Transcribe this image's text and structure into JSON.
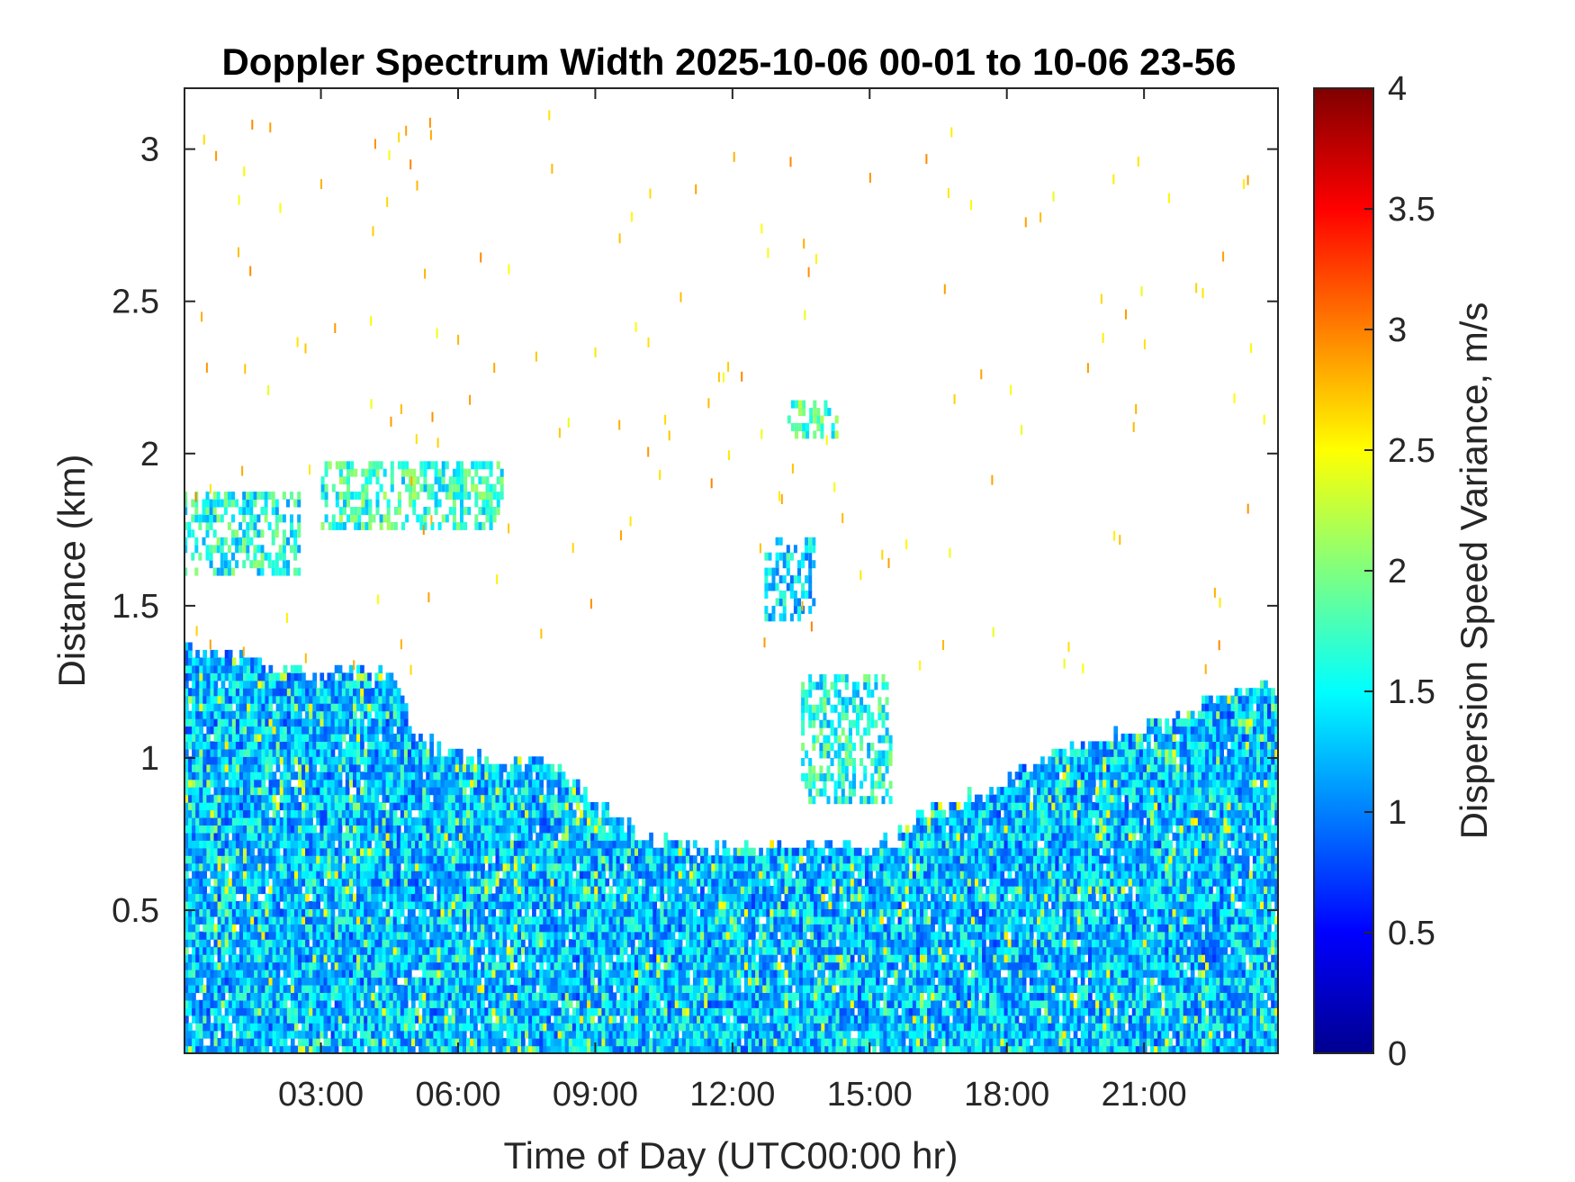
{
  "chart_data": {
    "type": "heatmap",
    "title": "Doppler Spectrum Width 2025-10-06 00-01 to 10-06 23-56",
    "xlabel": "Time of Day (UTC00:00 hr)",
    "ylabel": "Distance (km)",
    "colorbar_label": "Dispersion Speed Variance, m/s",
    "colormap": "jet",
    "x_unit": "hours UTC",
    "xlim": [
      0.0167,
      23.93
    ],
    "ylim": [
      0.03,
      3.2
    ],
    "clim": [
      0,
      4
    ],
    "x_ticks": [
      3,
      6,
      9,
      12,
      15,
      18,
      21
    ],
    "x_tick_labels": [
      "03:00",
      "06:00",
      "09:00",
      "12:00",
      "15:00",
      "18:00",
      "21:00"
    ],
    "y_ticks": [
      0.5,
      1,
      1.5,
      2,
      2.5,
      3
    ],
    "y_tick_labels": [
      "0.5",
      "1",
      "1.5",
      "2",
      "2.5",
      "3"
    ],
    "colorbar_ticks": [
      0,
      0.5,
      1,
      1.5,
      2,
      2.5,
      3,
      3.5,
      4
    ],
    "colorbar_tick_labels": [
      "0",
      "0.5",
      "1",
      "1.5",
      "2",
      "2.5",
      "3",
      "3.5",
      "4"
    ],
    "grid": false,
    "typical_value_boundary_layer": 1.3,
    "dense_layer_top_km": {
      "hours": [
        0,
        1,
        2,
        4.5,
        5,
        6,
        7,
        8,
        9,
        10,
        11,
        12,
        13,
        14,
        15,
        15.5,
        16,
        17,
        18,
        19,
        20,
        21,
        22,
        23,
        24
      ],
      "top_km": [
        1.35,
        1.32,
        1.27,
        1.27,
        1.07,
        0.98,
        0.98,
        0.97,
        0.85,
        0.72,
        0.7,
        0.69,
        0.69,
        0.7,
        0.7,
        0.72,
        0.8,
        0.85,
        0.92,
        1.0,
        1.05,
        1.08,
        1.15,
        1.22,
        1.22
      ]
    },
    "features": [
      {
        "hours": [
          0,
          2.5
        ],
        "km": [
          1.6,
          1.85
        ],
        "value": 1.6
      },
      {
        "hours": [
          3,
          7
        ],
        "km": [
          1.75,
          1.95
        ],
        "value": 1.7
      },
      {
        "hours": [
          12.7,
          13.8
        ],
        "km": [
          1.45,
          1.7
        ],
        "value": 1.4
      },
      {
        "hours": [
          13.2,
          14.3
        ],
        "km": [
          2.05,
          2.15
        ],
        "value": 1.8
      },
      {
        "hours": [
          13.5,
          15.5
        ],
        "km": [
          0.85,
          1.25
        ],
        "value": 1.6
      }
    ]
  }
}
